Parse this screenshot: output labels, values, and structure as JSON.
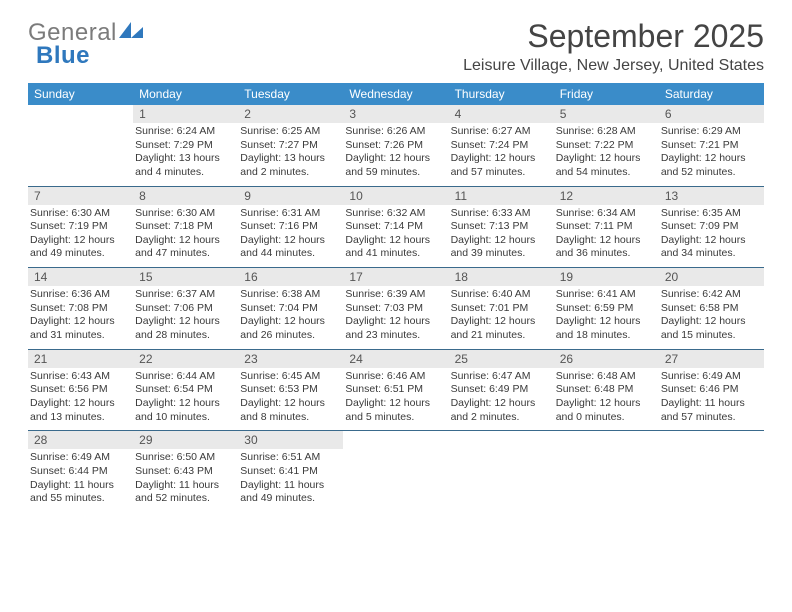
{
  "logo": {
    "line1": "General",
    "line2": "Blue"
  },
  "title": "September 2025",
  "location": "Leisure Village, New Jersey, United States",
  "header_bg": "#3a8cc9",
  "daynum_bg": "#e9e9e9",
  "rule_color": "#3a6a8c",
  "weekdays": [
    "Sunday",
    "Monday",
    "Tuesday",
    "Wednesday",
    "Thursday",
    "Friday",
    "Saturday"
  ],
  "weeks": [
    [
      {
        "n": "",
        "sr": "",
        "ss": "",
        "dl": ""
      },
      {
        "n": "1",
        "sr": "Sunrise: 6:24 AM",
        "ss": "Sunset: 7:29 PM",
        "dl": "Daylight: 13 hours and 4 minutes."
      },
      {
        "n": "2",
        "sr": "Sunrise: 6:25 AM",
        "ss": "Sunset: 7:27 PM",
        "dl": "Daylight: 13 hours and 2 minutes."
      },
      {
        "n": "3",
        "sr": "Sunrise: 6:26 AM",
        "ss": "Sunset: 7:26 PM",
        "dl": "Daylight: 12 hours and 59 minutes."
      },
      {
        "n": "4",
        "sr": "Sunrise: 6:27 AM",
        "ss": "Sunset: 7:24 PM",
        "dl": "Daylight: 12 hours and 57 minutes."
      },
      {
        "n": "5",
        "sr": "Sunrise: 6:28 AM",
        "ss": "Sunset: 7:22 PM",
        "dl": "Daylight: 12 hours and 54 minutes."
      },
      {
        "n": "6",
        "sr": "Sunrise: 6:29 AM",
        "ss": "Sunset: 7:21 PM",
        "dl": "Daylight: 12 hours and 52 minutes."
      }
    ],
    [
      {
        "n": "7",
        "sr": "Sunrise: 6:30 AM",
        "ss": "Sunset: 7:19 PM",
        "dl": "Daylight: 12 hours and 49 minutes."
      },
      {
        "n": "8",
        "sr": "Sunrise: 6:30 AM",
        "ss": "Sunset: 7:18 PM",
        "dl": "Daylight: 12 hours and 47 minutes."
      },
      {
        "n": "9",
        "sr": "Sunrise: 6:31 AM",
        "ss": "Sunset: 7:16 PM",
        "dl": "Daylight: 12 hours and 44 minutes."
      },
      {
        "n": "10",
        "sr": "Sunrise: 6:32 AM",
        "ss": "Sunset: 7:14 PM",
        "dl": "Daylight: 12 hours and 41 minutes."
      },
      {
        "n": "11",
        "sr": "Sunrise: 6:33 AM",
        "ss": "Sunset: 7:13 PM",
        "dl": "Daylight: 12 hours and 39 minutes."
      },
      {
        "n": "12",
        "sr": "Sunrise: 6:34 AM",
        "ss": "Sunset: 7:11 PM",
        "dl": "Daylight: 12 hours and 36 minutes."
      },
      {
        "n": "13",
        "sr": "Sunrise: 6:35 AM",
        "ss": "Sunset: 7:09 PM",
        "dl": "Daylight: 12 hours and 34 minutes."
      }
    ],
    [
      {
        "n": "14",
        "sr": "Sunrise: 6:36 AM",
        "ss": "Sunset: 7:08 PM",
        "dl": "Daylight: 12 hours and 31 minutes."
      },
      {
        "n": "15",
        "sr": "Sunrise: 6:37 AM",
        "ss": "Sunset: 7:06 PM",
        "dl": "Daylight: 12 hours and 28 minutes."
      },
      {
        "n": "16",
        "sr": "Sunrise: 6:38 AM",
        "ss": "Sunset: 7:04 PM",
        "dl": "Daylight: 12 hours and 26 minutes."
      },
      {
        "n": "17",
        "sr": "Sunrise: 6:39 AM",
        "ss": "Sunset: 7:03 PM",
        "dl": "Daylight: 12 hours and 23 minutes."
      },
      {
        "n": "18",
        "sr": "Sunrise: 6:40 AM",
        "ss": "Sunset: 7:01 PM",
        "dl": "Daylight: 12 hours and 21 minutes."
      },
      {
        "n": "19",
        "sr": "Sunrise: 6:41 AM",
        "ss": "Sunset: 6:59 PM",
        "dl": "Daylight: 12 hours and 18 minutes."
      },
      {
        "n": "20",
        "sr": "Sunrise: 6:42 AM",
        "ss": "Sunset: 6:58 PM",
        "dl": "Daylight: 12 hours and 15 minutes."
      }
    ],
    [
      {
        "n": "21",
        "sr": "Sunrise: 6:43 AM",
        "ss": "Sunset: 6:56 PM",
        "dl": "Daylight: 12 hours and 13 minutes."
      },
      {
        "n": "22",
        "sr": "Sunrise: 6:44 AM",
        "ss": "Sunset: 6:54 PM",
        "dl": "Daylight: 12 hours and 10 minutes."
      },
      {
        "n": "23",
        "sr": "Sunrise: 6:45 AM",
        "ss": "Sunset: 6:53 PM",
        "dl": "Daylight: 12 hours and 8 minutes."
      },
      {
        "n": "24",
        "sr": "Sunrise: 6:46 AM",
        "ss": "Sunset: 6:51 PM",
        "dl": "Daylight: 12 hours and 5 minutes."
      },
      {
        "n": "25",
        "sr": "Sunrise: 6:47 AM",
        "ss": "Sunset: 6:49 PM",
        "dl": "Daylight: 12 hours and 2 minutes."
      },
      {
        "n": "26",
        "sr": "Sunrise: 6:48 AM",
        "ss": "Sunset: 6:48 PM",
        "dl": "Daylight: 12 hours and 0 minutes."
      },
      {
        "n": "27",
        "sr": "Sunrise: 6:49 AM",
        "ss": "Sunset: 6:46 PM",
        "dl": "Daylight: 11 hours and 57 minutes."
      }
    ],
    [
      {
        "n": "28",
        "sr": "Sunrise: 6:49 AM",
        "ss": "Sunset: 6:44 PM",
        "dl": "Daylight: 11 hours and 55 minutes."
      },
      {
        "n": "29",
        "sr": "Sunrise: 6:50 AM",
        "ss": "Sunset: 6:43 PM",
        "dl": "Daylight: 11 hours and 52 minutes."
      },
      {
        "n": "30",
        "sr": "Sunrise: 6:51 AM",
        "ss": "Sunset: 6:41 PM",
        "dl": "Daylight: 11 hours and 49 minutes."
      },
      {
        "n": "",
        "sr": "",
        "ss": "",
        "dl": ""
      },
      {
        "n": "",
        "sr": "",
        "ss": "",
        "dl": ""
      },
      {
        "n": "",
        "sr": "",
        "ss": "",
        "dl": ""
      },
      {
        "n": "",
        "sr": "",
        "ss": "",
        "dl": ""
      }
    ]
  ]
}
